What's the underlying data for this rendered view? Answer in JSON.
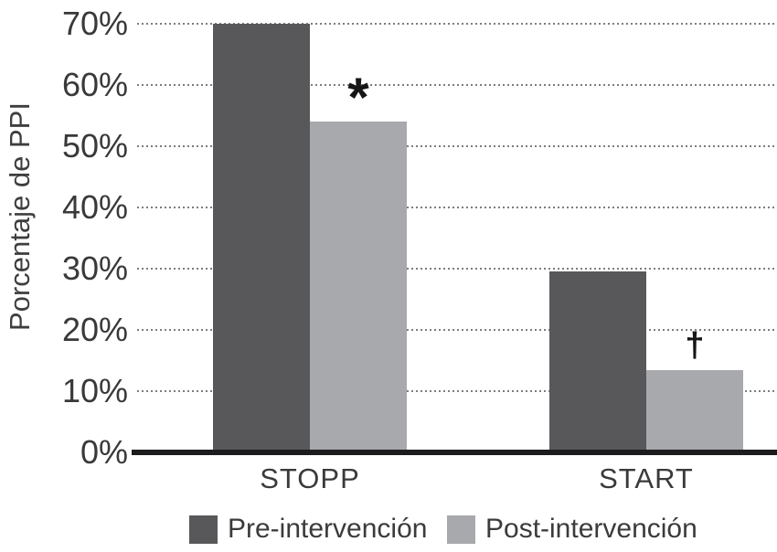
{
  "chart_data": {
    "type": "bar",
    "title": "",
    "ylabel": "Porcentaje de PPI",
    "xlabel": "",
    "categories": [
      "STOPP",
      "START"
    ],
    "series": [
      {
        "name": "Pre-intervención",
        "color": "#58585a",
        "values": [
          70,
          29.5
        ]
      },
      {
        "name": "Post-intervención",
        "color": "#a7a9ac",
        "values": [
          54,
          13.5
        ]
      }
    ],
    "annotations": [
      {
        "symbol": "*",
        "category_index": 0,
        "series_index": 1
      },
      {
        "symbol": "†",
        "category_index": 1,
        "series_index": 1
      }
    ],
    "ylim": [
      0,
      70
    ],
    "ytick_step": 10,
    "ytick_labels": [
      "0%",
      "10%",
      "20%",
      "30%",
      "40%",
      "50%",
      "60%",
      "70%"
    ],
    "grid": "horizontal-dotted",
    "gridline_color": "#7d7d7d",
    "baseline_color": "#1c1c1e",
    "legend_position": "bottom",
    "annotation_color": "#161616"
  }
}
